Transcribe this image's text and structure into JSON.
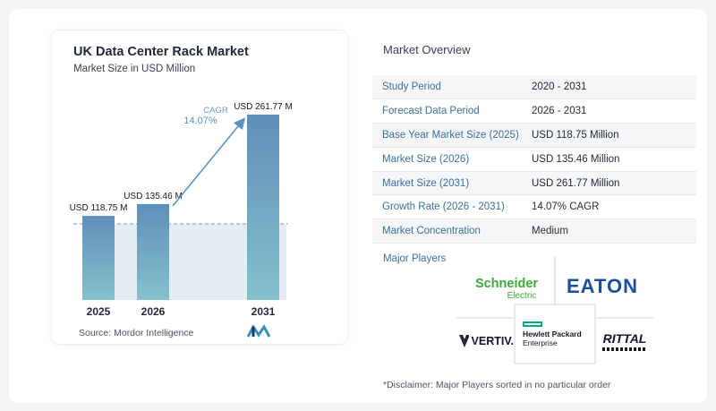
{
  "chart_data": {
    "type": "bar",
    "title": "UK Data Center Rack Market",
    "subtitle": "Market Size in USD Million",
    "categories": [
      "2025",
      "2026",
      "2031"
    ],
    "values": [
      118.75,
      135.46,
      261.77
    ],
    "value_labels": [
      "USD 118.75 M",
      "USD 135.46 M",
      "USD 261.77 M"
    ],
    "cagr_label": "CAGR",
    "cagr_value": "14.07%",
    "bar_color": "#5d94bc",
    "accent_color": "#5b93c0"
  },
  "source": {
    "text": "Source:  Mordor Intelligence"
  },
  "overview": {
    "title": "Market Overview",
    "rows": [
      {
        "label": "Study Period",
        "value": "2020 - 2031"
      },
      {
        "label": "Forecast Data Period",
        "value": "2026 - 2031"
      },
      {
        "label": "Base Year Market Size (2025)",
        "value": "USD 118.75 Million"
      },
      {
        "label": "Market Size (2026)",
        "value": "USD 135.46 Million"
      },
      {
        "label": "Market Size (2031)",
        "value": "USD 261.77 Million"
      },
      {
        "label": "Growth Rate (2026 - 2031)",
        "value": "14.07% CAGR"
      },
      {
        "label": "Market Concentration",
        "value": "Medium"
      }
    ]
  },
  "players": {
    "title": "Major Players",
    "schneider": {
      "line1": "Schneider",
      "line2": "Electric"
    },
    "eaton": "EATON",
    "vertiv": "VERTIV.",
    "hpe": {
      "line1": "Hewlett Packard",
      "line2": "Enterprise"
    },
    "rittal": "RITTAL"
  },
  "disclaimer": "*Disclaimer: Major Players sorted in no particular order"
}
